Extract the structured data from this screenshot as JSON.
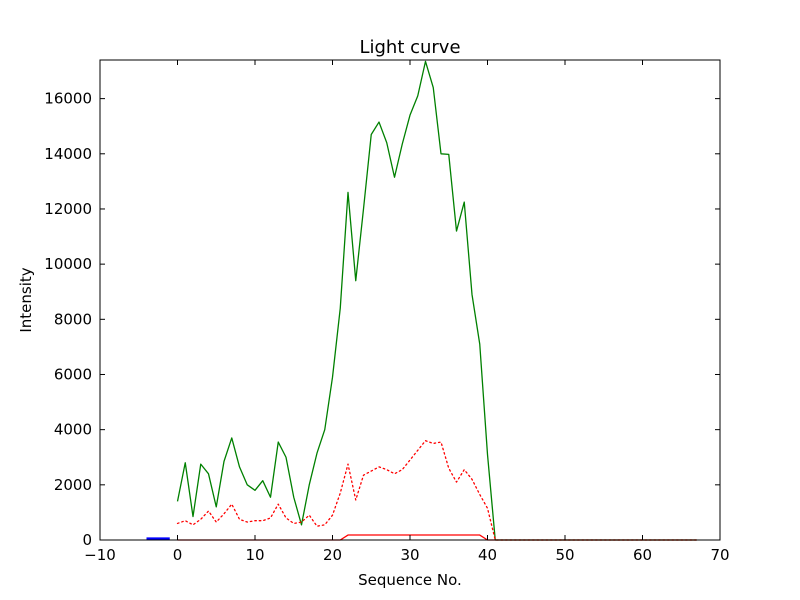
{
  "chart_data": {
    "type": "line",
    "title": "Light curve",
    "xlabel": "Sequence No.",
    "ylabel": "Intensity",
    "xlim": [
      -10,
      70
    ],
    "ylim": [
      0,
      17400
    ],
    "xticks": [
      -10,
      0,
      10,
      20,
      30,
      40,
      50,
      60,
      70
    ],
    "yticks": [
      0,
      2000,
      4000,
      6000,
      8000,
      10000,
      12000,
      14000,
      16000
    ],
    "grid": false,
    "series": [
      {
        "color": "#008000",
        "style": "solid",
        "x": [
          0,
          1,
          2,
          3,
          4,
          5,
          6,
          7,
          8,
          9,
          10,
          11,
          12,
          13,
          14,
          15,
          16,
          17,
          18,
          19,
          20,
          21,
          22,
          23,
          24,
          25,
          26,
          27,
          28,
          29,
          30,
          31,
          32,
          33,
          34,
          35,
          36,
          37,
          38,
          39,
          40,
          41,
          42,
          43,
          44,
          45,
          46,
          47,
          48,
          49,
          50,
          51,
          52,
          53,
          54,
          55,
          56,
          57,
          58,
          59,
          60,
          61,
          62,
          63,
          64,
          65,
          66,
          67
        ],
        "y": [
          1400,
          2800,
          850,
          2750,
          2400,
          1200,
          2850,
          3700,
          2650,
          2000,
          1800,
          2150,
          1550,
          3550,
          3000,
          1550,
          550,
          2000,
          3150,
          4000,
          5900,
          8400,
          12600,
          9400,
          12000,
          14700,
          15150,
          14400,
          13150,
          14350,
          15400,
          16100,
          17350,
          16400,
          14000,
          13980,
          11200,
          12250,
          8900,
          7100,
          3100,
          0,
          0,
          0,
          0,
          0,
          0,
          0,
          0,
          0,
          0,
          0,
          0,
          0,
          0,
          0,
          0,
          0,
          0,
          0,
          0,
          0,
          0,
          0,
          0,
          0,
          0,
          0
        ]
      },
      {
        "color": "#ff0000",
        "style": "dotted",
        "x": [
          0,
          1,
          2,
          3,
          4,
          5,
          6,
          7,
          8,
          9,
          10,
          11,
          12,
          13,
          14,
          15,
          16,
          17,
          18,
          19,
          20,
          21,
          22,
          23,
          24,
          25,
          26,
          27,
          28,
          29,
          30,
          31,
          32,
          33,
          34,
          35,
          36,
          37,
          38,
          39,
          40,
          41,
          42,
          43,
          44,
          45,
          46,
          47,
          48,
          49,
          50,
          51,
          52,
          53,
          54,
          55,
          56,
          57,
          58,
          59,
          60,
          61,
          62,
          63,
          64,
          65,
          66,
          67
        ],
        "y": [
          600,
          700,
          550,
          750,
          1050,
          650,
          950,
          1300,
          750,
          650,
          700,
          700,
          800,
          1300,
          800,
          600,
          650,
          900,
          500,
          550,
          900,
          1700,
          2750,
          1450,
          2350,
          2500,
          2650,
          2550,
          2400,
          2550,
          2900,
          3250,
          3600,
          3500,
          3550,
          2600,
          2100,
          2550,
          2200,
          1650,
          1150,
          0,
          0,
          0,
          0,
          0,
          0,
          0,
          0,
          0,
          0,
          0,
          0,
          0,
          0,
          0,
          0,
          0,
          0,
          0,
          0,
          0,
          0,
          0,
          0,
          0,
          0,
          0
        ]
      },
      {
        "color": "#ff0000",
        "style": "solid",
        "x": [
          0,
          1,
          2,
          3,
          4,
          5,
          6,
          7,
          8,
          9,
          10,
          11,
          12,
          13,
          14,
          15,
          16,
          17,
          18,
          19,
          20,
          21,
          22,
          23,
          24,
          25,
          26,
          27,
          28,
          29,
          30,
          31,
          32,
          33,
          34,
          35,
          36,
          37,
          38,
          39,
          40,
          41,
          42,
          43,
          44,
          45,
          46,
          47,
          48,
          49,
          50,
          51,
          52,
          53,
          54,
          55,
          56,
          57,
          58,
          59,
          60,
          61,
          62,
          63,
          64,
          65,
          66,
          67
        ],
        "y": [
          0,
          0,
          0,
          0,
          0,
          0,
          0,
          0,
          0,
          0,
          0,
          0,
          0,
          0,
          0,
          0,
          0,
          0,
          0,
          0,
          0,
          0,
          180,
          180,
          180,
          180,
          180,
          180,
          180,
          180,
          180,
          180,
          180,
          180,
          180,
          180,
          180,
          180,
          180,
          180,
          0,
          0,
          0,
          0,
          0,
          0,
          0,
          0,
          0,
          0,
          0,
          0,
          0,
          0,
          0,
          0,
          0,
          0,
          0,
          0,
          0,
          0,
          0,
          0,
          0,
          0,
          0,
          0
        ]
      },
      {
        "color": "#0000ff",
        "style": "solid",
        "x": [
          -4,
          -3,
          -2,
          -1
        ],
        "y": [
          40,
          40,
          40,
          40
        ]
      }
    ]
  }
}
